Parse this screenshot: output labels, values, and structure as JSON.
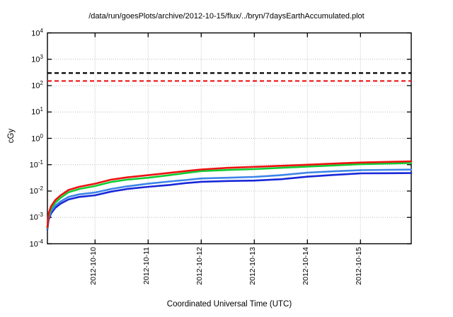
{
  "title": "/data/run/goesPlots/archive/2012-10-15/flux/../bryn/7daysEarthAccumulated.plot",
  "x_axis_label": "Coordinated Universal Time (UTC)",
  "y_axis_label": "cGy",
  "colors": {
    "background": "#ffffff",
    "border": "#000000",
    "grid": "#b8b8b8",
    "threshold_black": "#000000",
    "threshold_red": "#ee1111"
  },
  "chart_data": {
    "type": "line",
    "title": "/data/run/goesPlots/archive/2012-10-15/flux/../bryn/7daysEarthAccumulated.plot",
    "xlabel": "Coordinated Universal Time (UTC)",
    "ylabel": "cGy",
    "y_scale": "log10",
    "ylim_exponents": [
      -4,
      4
    ],
    "y_tick_exponents": [
      4,
      3,
      2,
      1,
      0,
      -1,
      -2,
      -3,
      -4
    ],
    "grid": true,
    "legend": "none",
    "x_units": "days since 2012-10-09 00:00 UTC",
    "x_range_days": [
      0.103,
      6.956
    ],
    "x_ticks": [
      {
        "day": 1,
        "label": "2012-10-10"
      },
      {
        "day": 2,
        "label": "2012-10-11"
      },
      {
        "day": 3,
        "label": "2012-10-12"
      },
      {
        "day": 4,
        "label": "2012-10-13"
      },
      {
        "day": 5,
        "label": "2012-10-14"
      },
      {
        "day": 6,
        "label": "2012-10-15"
      }
    ],
    "thresholds": [
      {
        "name": "upper-dose-limit",
        "value_cGy": 300,
        "color": "#000000",
        "style": "dashed"
      },
      {
        "name": "lower-dose-limit",
        "value_cGy": 150,
        "color": "#ee1111",
        "style": "dashed"
      }
    ],
    "x_days": [
      0.103,
      0.125,
      0.17,
      0.25,
      0.35,
      0.5,
      0.7,
      1.0,
      1.3,
      1.6,
      2.0,
      2.4,
      2.7,
      3.0,
      3.5,
      4.0,
      4.5,
      5.0,
      5.5,
      6.0,
      6.5,
      6.956
    ],
    "series": [
      {
        "name": "red-curve",
        "color": "#ee1111",
        "values": [
          0.00042,
          0.0014,
          0.0026,
          0.0045,
          0.0068,
          0.011,
          0.0145,
          0.019,
          0.027,
          0.033,
          0.04,
          0.049,
          0.057,
          0.066,
          0.076,
          0.083,
          0.091,
          0.1,
          0.11,
          0.121,
          0.128,
          0.134
        ]
      },
      {
        "name": "green-curve",
        "color": "#11cc33",
        "values": [
          0.0004,
          0.0011,
          0.0021,
          0.0036,
          0.0055,
          0.009,
          0.012,
          0.0155,
          0.022,
          0.027,
          0.032,
          0.04,
          0.048,
          0.057,
          0.063,
          0.068,
          0.076,
          0.085,
          0.094,
          0.104,
          0.11,
          0.116
        ]
      },
      {
        "name": "light-blue-curve",
        "color": "#3d85e8",
        "values": [
          0.00038,
          0.00095,
          0.0017,
          0.0028,
          0.004,
          0.006,
          0.0075,
          0.0088,
          0.012,
          0.015,
          0.019,
          0.023,
          0.026,
          0.03,
          0.032,
          0.0345,
          0.04,
          0.05,
          0.056,
          0.062,
          0.064,
          0.065
        ]
      },
      {
        "name": "dark-blue-curve",
        "color": "#1828d8",
        "values": [
          0.00035,
          0.0008,
          0.0014,
          0.0023,
          0.0033,
          0.0048,
          0.006,
          0.0069,
          0.0095,
          0.012,
          0.0145,
          0.017,
          0.02,
          0.0225,
          0.024,
          0.025,
          0.028,
          0.035,
          0.041,
          0.047,
          0.0475,
          0.048
        ]
      }
    ]
  }
}
